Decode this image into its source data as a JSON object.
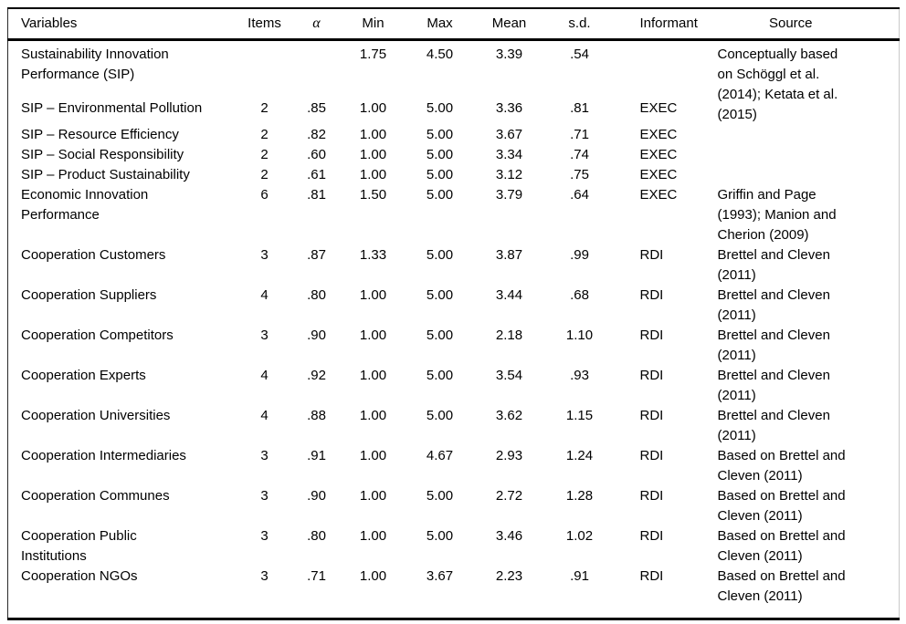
{
  "colors": {
    "text": "#000000",
    "background": "#ffffff",
    "rule": "#000000"
  },
  "table": {
    "columns": {
      "variables": "Variables",
      "items": "Items",
      "alpha": "α",
      "min": "Min",
      "max": "Max",
      "mean": "Mean",
      "sd": "s.d.",
      "informant": "Informant",
      "source": "Source"
    },
    "rows": [
      {
        "variable": "Sustainability Innovation Performance (SIP)",
        "items": "",
        "alpha": "",
        "min": "1.75",
        "max": "4.50",
        "mean": "3.39",
        "sd": ".54",
        "informant": "",
        "source": "Conceptually based on Schöggl et al. (2014); Ketata et al. (2015)"
      },
      {
        "variable": "SIP – Environmental Pollution",
        "items": "2",
        "alpha": ".85",
        "min": "1.00",
        "max": "5.00",
        "mean": "3.36",
        "sd": ".81",
        "informant": "EXEC",
        "source": ""
      },
      {
        "variable": "SIP – Resource Efficiency",
        "items": "2",
        "alpha": ".82",
        "min": "1.00",
        "max": "5.00",
        "mean": "3.67",
        "sd": ".71",
        "informant": "EXEC",
        "source": ""
      },
      {
        "variable": "SIP – Social Responsibility",
        "items": "2",
        "alpha": ".60",
        "min": "1.00",
        "max": "5.00",
        "mean": "3.34",
        "sd": ".74",
        "informant": "EXEC",
        "source": ""
      },
      {
        "variable": "SIP – Product Sustainability",
        "items": "2",
        "alpha": ".61",
        "min": "1.00",
        "max": "5.00",
        "mean": "3.12",
        "sd": ".75",
        "informant": "EXEC",
        "source": ""
      },
      {
        "variable": "Economic Innovation Performance",
        "items": "6",
        "alpha": ".81",
        "min": "1.50",
        "max": "5.00",
        "mean": "3.79",
        "sd": ".64",
        "informant": "EXEC",
        "source": "Griffin and Page (1993); Manion and Cherion (2009)"
      },
      {
        "variable": "Cooperation Customers",
        "items": "3",
        "alpha": ".87",
        "min": "1.33",
        "max": "5.00",
        "mean": "3.87",
        "sd": ".99",
        "informant": "RDI",
        "source": "Brettel and Cleven (2011)"
      },
      {
        "variable": "Cooperation Suppliers",
        "items": "4",
        "alpha": ".80",
        "min": "1.00",
        "max": "5.00",
        "mean": "3.44",
        "sd": ".68",
        "informant": "RDI",
        "source": "Brettel and Cleven (2011)"
      },
      {
        "variable": "Cooperation Competitors",
        "items": "3",
        "alpha": ".90",
        "min": "1.00",
        "max": "5.00",
        "mean": "2.18",
        "sd": "1.10",
        "informant": "RDI",
        "source": "Brettel and Cleven (2011)"
      },
      {
        "variable": "Cooperation Experts",
        "items": "4",
        "alpha": ".92",
        "min": "1.00",
        "max": "5.00",
        "mean": "3.54",
        "sd": ".93",
        "informant": "RDI",
        "source": "Brettel and Cleven (2011)"
      },
      {
        "variable": "Cooperation Universities",
        "items": "4",
        "alpha": ".88",
        "min": "1.00",
        "max": "5.00",
        "mean": "3.62",
        "sd": "1.15",
        "informant": "RDI",
        "source": "Brettel and Cleven (2011)"
      },
      {
        "variable": "Cooperation Intermediaries",
        "items": "3",
        "alpha": ".91",
        "min": "1.00",
        "max": "4.67",
        "mean": "2.93",
        "sd": "1.24",
        "informant": "RDI",
        "source": "Based on Brettel and Cleven (2011)"
      },
      {
        "variable": "Cooperation Communes",
        "items": "3",
        "alpha": ".90",
        "min": "1.00",
        "max": "5.00",
        "mean": "2.72",
        "sd": "1.28",
        "informant": "RDI",
        "source": "Based on Brettel and Cleven (2011)"
      },
      {
        "variable": "Cooperation Public Institutions",
        "items": "3",
        "alpha": ".80",
        "min": "1.00",
        "max": "5.00",
        "mean": "3.46",
        "sd": "1.02",
        "informant": "RDI",
        "source": "Based on Brettel and Cleven (2011)"
      },
      {
        "variable": "Cooperation NGOs",
        "items": "3",
        "alpha": ".71",
        "min": "1.00",
        "max": "3.67",
        "mean": "2.23",
        "sd": ".91",
        "informant": "RDI",
        "source": "Based on Brettel and Cleven (2011)"
      }
    ]
  }
}
